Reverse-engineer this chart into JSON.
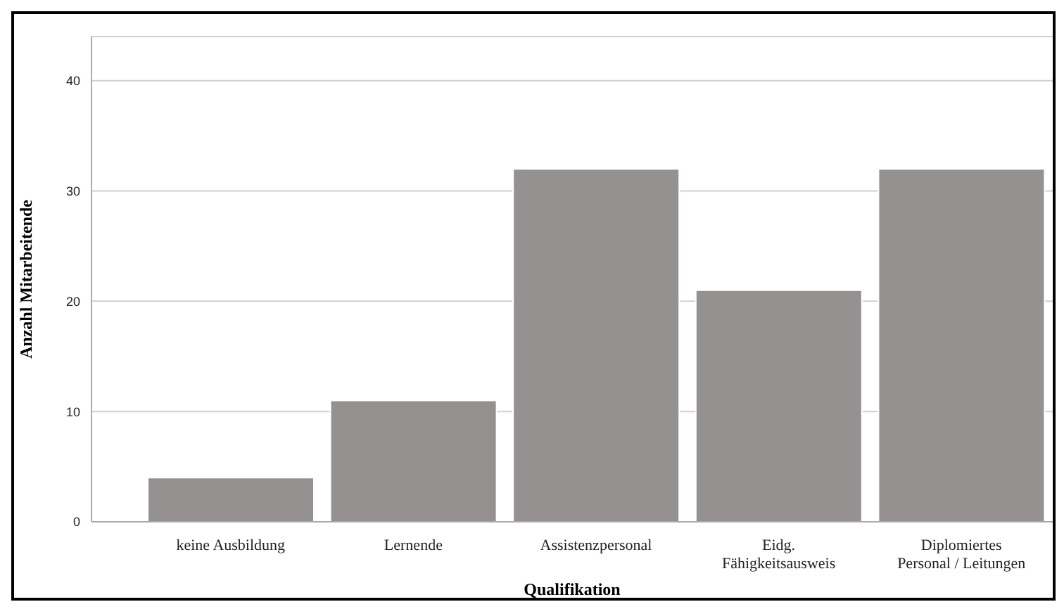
{
  "chart_data": {
    "type": "bar",
    "xlabel": "Qualifikation",
    "ylabel": "Anzahl Mitarbeitende",
    "categories": [
      "keine Ausbildung",
      "Lernende",
      "Assistenzpersonal",
      "Eidg.\nFähigkeitsausweis",
      "Diplomiertes\nPersonal / Leitungen"
    ],
    "values": [
      4,
      11,
      32,
      21,
      32
    ],
    "color": "#959190",
    "ylim": [
      0,
      44
    ],
    "yticks": [
      0,
      10,
      20,
      30,
      40
    ],
    "grid": "y",
    "legend": false
  }
}
